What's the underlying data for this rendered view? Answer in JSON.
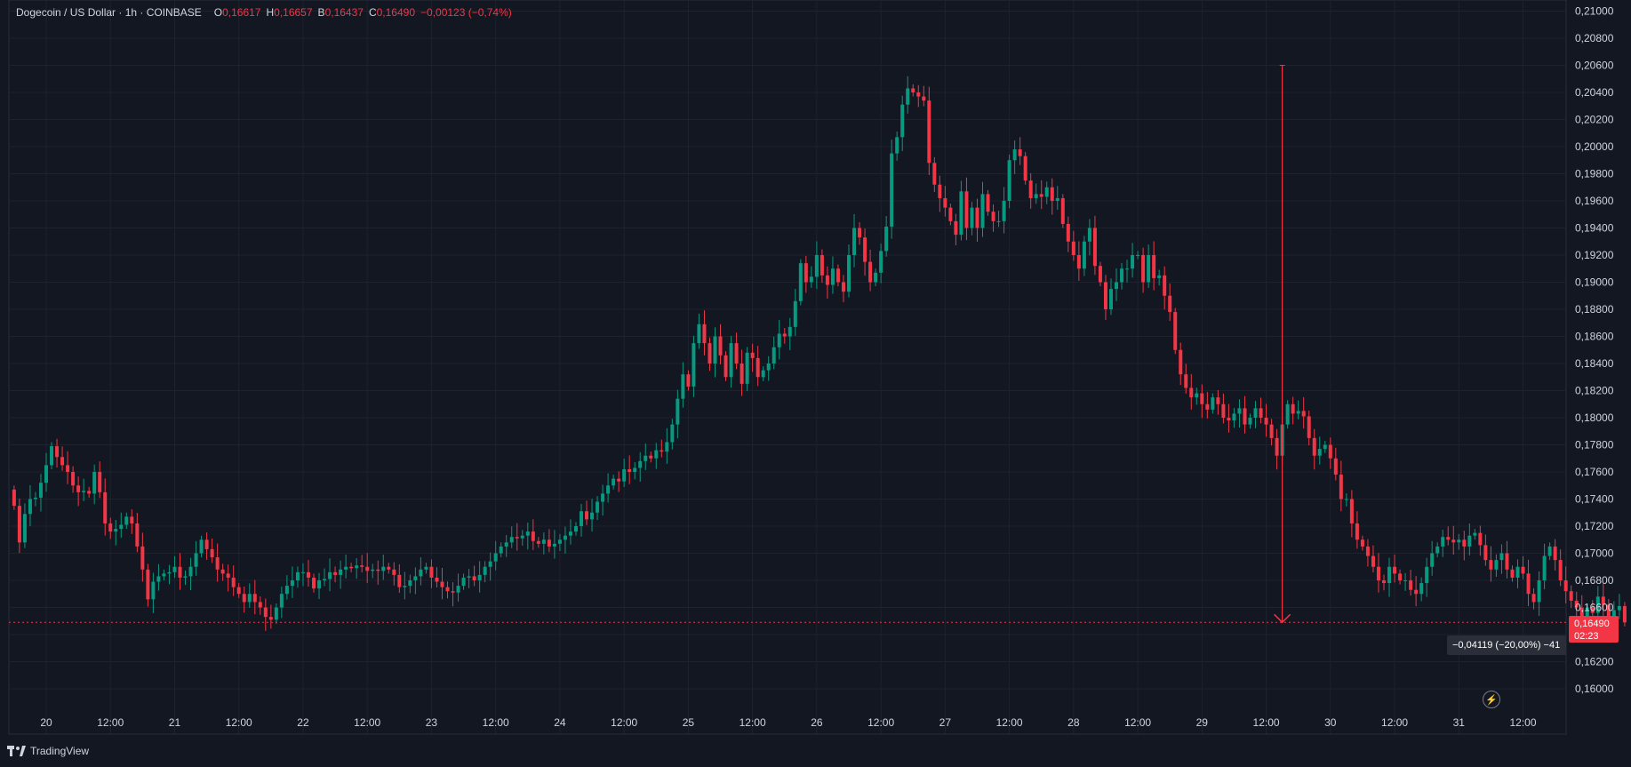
{
  "header": {
    "symbol": "Dogecoin / US Dollar · 1h · COINBASE",
    "o_label": "O",
    "o_value": "0,16617",
    "h_label": "H",
    "h_value": "0,16657",
    "l_label": "B",
    "l_value": "0,16437",
    "c_label": "C",
    "c_value": "0,16490",
    "change": "−0,00123 (−0,74%)"
  },
  "brand": {
    "name": "TradingView",
    "icon": "tradingview-logo-icon"
  },
  "last_price": {
    "value": "0,16490",
    "countdown": "02:23"
  },
  "measure": {
    "label": "−0,04119 (−20,00%) −41",
    "start_price": 0.206,
    "end_price": 0.1649,
    "time_index": 237
  },
  "colors": {
    "up": "#089981",
    "down": "#f23645",
    "background": "#131722",
    "grid": "#1e222d",
    "text": "#d1d4dc"
  },
  "chart_data": {
    "type": "candlestick",
    "title": "Dogecoin / US Dollar · 1h · COINBASE",
    "ylim": [
      0.159,
      0.211
    ],
    "y_ticks": [
      "0,21000",
      "0,20800",
      "0,20600",
      "0,20400",
      "0,20200",
      "0,20000",
      "0,19800",
      "0,19600",
      "0,19400",
      "0,19200",
      "0,19000",
      "0,18800",
      "0,18600",
      "0,18400",
      "0,18200",
      "0,18000",
      "0,17800",
      "0,17600",
      "0,17400",
      "0,17200",
      "0,17000",
      "0,16800",
      "0,16600",
      "0,16400",
      "0,16200",
      "0,16000"
    ],
    "x_ticks": [
      {
        "label": "20",
        "index": 6
      },
      {
        "label": "12:00",
        "index": 18
      },
      {
        "label": "21",
        "index": 30
      },
      {
        "label": "12:00",
        "index": 42
      },
      {
        "label": "22",
        "index": 54
      },
      {
        "label": "12:00",
        "index": 66
      },
      {
        "label": "23",
        "index": 78
      },
      {
        "label": "12:00",
        "index": 90
      },
      {
        "label": "24",
        "index": 102
      },
      {
        "label": "12:00",
        "index": 114
      },
      {
        "label": "25",
        "index": 126
      },
      {
        "label": "12:00",
        "index": 138
      },
      {
        "label": "26",
        "index": 150
      },
      {
        "label": "12:00",
        "index": 162
      },
      {
        "label": "27",
        "index": 174
      },
      {
        "label": "12:00",
        "index": 186
      },
      {
        "label": "28",
        "index": 198
      },
      {
        "label": "12:00",
        "index": 210
      },
      {
        "label": "29",
        "index": 222
      },
      {
        "label": "12:00",
        "index": 234
      },
      {
        "label": "30",
        "index": 246
      },
      {
        "label": "12:00",
        "index": 258
      },
      {
        "label": "31",
        "index": 270
      },
      {
        "label": "12:00",
        "index": 282
      }
    ],
    "last_index": 277,
    "last_close": 0.1649,
    "closes": [
      0.1735,
      0.1708,
      0.1729,
      0.174,
      0.1741,
      0.1752,
      0.1765,
      0.1779,
      0.1771,
      0.1765,
      0.176,
      0.175,
      0.1745,
      0.1746,
      0.1744,
      0.176,
      0.1745,
      0.1722,
      0.1716,
      0.1718,
      0.1721,
      0.1727,
      0.1722,
      0.1705,
      0.1688,
      0.1666,
      0.1679,
      0.1683,
      0.1685,
      0.1686,
      0.169,
      0.1682,
      0.1683,
      0.169,
      0.17,
      0.171,
      0.1703,
      0.1697,
      0.1688,
      0.1685,
      0.1682,
      0.1675,
      0.167,
      0.1664,
      0.167,
      0.1664,
      0.166,
      0.1653,
      0.1651,
      0.166,
      0.167,
      0.1676,
      0.168,
      0.1686,
      0.1686,
      0.1682,
      0.1674,
      0.168,
      0.1681,
      0.1686,
      0.1684,
      0.1688,
      0.169,
      0.1689,
      0.1691,
      0.169,
      0.1687,
      0.1688,
      0.1687,
      0.169,
      0.1688,
      0.1684,
      0.1675,
      0.1676,
      0.168,
      0.1683,
      0.1688,
      0.169,
      0.1682,
      0.1679,
      0.1675,
      0.1672,
      0.1671,
      0.1676,
      0.1682,
      0.1683,
      0.168,
      0.1684,
      0.169,
      0.1694,
      0.17,
      0.1705,
      0.1708,
      0.1712,
      0.1711,
      0.1713,
      0.1716,
      0.1709,
      0.1707,
      0.171,
      0.1705,
      0.1707,
      0.171,
      0.1713,
      0.1716,
      0.172,
      0.1731,
      0.1725,
      0.173,
      0.1738,
      0.1744,
      0.175,
      0.1755,
      0.1753,
      0.1762,
      0.176,
      0.1763,
      0.1768,
      0.1772,
      0.177,
      0.1776,
      0.1775,
      0.1782,
      0.1795,
      0.1814,
      0.1832,
      0.1823,
      0.1855,
      0.1869,
      0.1855,
      0.184,
      0.186,
      0.1846,
      0.183,
      0.1855,
      0.184,
      0.1825,
      0.1848,
      0.1844,
      0.183,
      0.1835,
      0.184,
      0.1852,
      0.1862,
      0.186,
      0.1867,
      0.1886,
      0.1914,
      0.19,
      0.1904,
      0.192,
      0.1905,
      0.1898,
      0.191,
      0.19,
      0.1893,
      0.192,
      0.194,
      0.1933,
      0.1915,
      0.19,
      0.1907,
      0.1923,
      0.1941,
      0.1995,
      0.2007,
      0.2031,
      0.2043,
      0.204,
      0.2037,
      0.2034,
      0.1988,
      0.1972,
      0.1962,
      0.1955,
      0.1945,
      0.1935,
      0.1967,
      0.194,
      0.1955,
      0.194,
      0.1965,
      0.1952,
      0.1945,
      0.1945,
      0.196,
      0.199,
      0.1998,
      0.1993,
      0.1975,
      0.1962,
      0.1965,
      0.1963,
      0.197,
      0.196,
      0.1962,
      0.1943,
      0.193,
      0.192,
      0.191,
      0.193,
      0.194,
      0.1912,
      0.19,
      0.188,
      0.1895,
      0.19,
      0.191,
      0.191,
      0.192,
      0.192,
      0.19,
      0.192,
      0.1903,
      0.1905,
      0.189,
      0.1878,
      0.185,
      0.1832,
      0.1822,
      0.1815,
      0.1818,
      0.181,
      0.1806,
      0.1815,
      0.181,
      0.18,
      0.1798,
      0.1803,
      0.1807,
      0.1795,
      0.18,
      0.1807,
      0.18,
      0.1795,
      0.1785,
      0.1772,
      0.1795,
      0.181,
      0.1803,
      0.1805,
      0.1801,
      0.1785,
      0.1772,
      0.1777,
      0.178,
      0.177,
      0.1758,
      0.174,
      0.174,
      0.1722,
      0.171,
      0.1705,
      0.1698,
      0.169,
      0.168,
      0.1678,
      0.169,
      0.1685,
      0.168,
      0.168,
      0.1673,
      0.167,
      0.1678,
      0.169,
      0.17,
      0.1705,
      0.1712,
      0.171,
      0.1708,
      0.171,
      0.1705,
      0.1713,
      0.1715,
      0.1706,
      0.1695,
      0.1688,
      0.1695,
      0.17,
      0.1688,
      0.1682,
      0.169,
      0.1685,
      0.167,
      0.1664,
      0.168,
      0.1698,
      0.1705,
      0.1695,
      0.168,
      0.1672,
      0.1665,
      0.166,
      0.1648,
      0.166,
      0.1656,
      0.1668,
      0.1662,
      0.1652,
      0.1658,
      0.1661,
      0.1649
    ]
  }
}
